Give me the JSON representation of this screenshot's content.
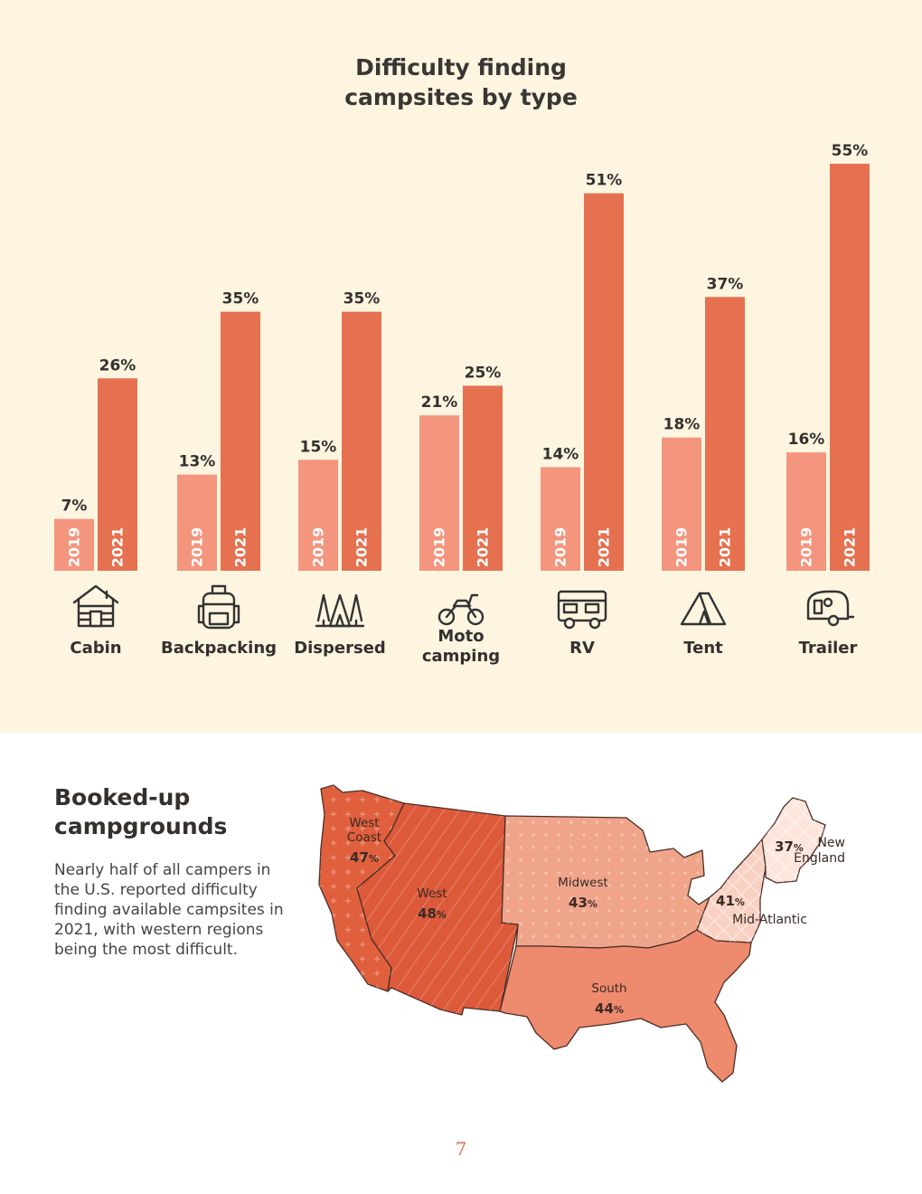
{
  "chart_data": {
    "type": "bar",
    "title": [
      "Difficulty finding",
      "campsites by type"
    ],
    "categories": [
      "Cabin",
      "Backpacking",
      "Dispersed",
      "Moto camping",
      "RV",
      "Tent",
      "Trailer"
    ],
    "category_lines": [
      [
        "Cabin"
      ],
      [
        "Backpacking"
      ],
      [
        "Dispersed"
      ],
      [
        "Moto",
        "camping"
      ],
      [
        "RV"
      ],
      [
        "Tent"
      ],
      [
        "Trailer"
      ]
    ],
    "icons": [
      "cabin-icon",
      "backpack-icon",
      "dispersed-trees-icon",
      "motorcycle-icon",
      "rv-icon",
      "tent-icon",
      "trailer-icon"
    ],
    "series": [
      {
        "name": "2019",
        "values": [
          7,
          13,
          15,
          21,
          14,
          18,
          16
        ],
        "color": "#f4957e"
      },
      {
        "name": "2021",
        "values": [
          26,
          35,
          35,
          25,
          51,
          37,
          55
        ],
        "color": "#e57150"
      }
    ],
    "value_suffix": "%",
    "ylim": [
      0,
      55
    ]
  },
  "booked": {
    "title": [
      "Booked-up",
      "campgrounds"
    ],
    "body": "Nearly half of all campers in the U.S. reported difficulty finding available campsites in 2021, with western regions being the most difficult."
  },
  "map": {
    "regions": [
      {
        "name": "West Coast",
        "lines": [
          "West",
          "Coast"
        ],
        "value": "47",
        "color": "#e0603e"
      },
      {
        "name": "West",
        "lines": [
          "West"
        ],
        "value": "48",
        "color": "#dc5a3a"
      },
      {
        "name": "Midwest",
        "lines": [
          "Midwest"
        ],
        "value": "43",
        "color": "#f0a58b"
      },
      {
        "name": "South",
        "lines": [
          "South"
        ],
        "value": "44",
        "color": "#ee8a6d"
      },
      {
        "name": "Mid-Atlantic",
        "lines": [
          "Mid-Atlantic"
        ],
        "value": "41",
        "color": "#f9d1c3"
      },
      {
        "name": "New England",
        "lines": [
          "New",
          "England"
        ],
        "value": "37",
        "color": "#fde5dc"
      }
    ],
    "value_suffix": "%"
  },
  "page_number": "7"
}
